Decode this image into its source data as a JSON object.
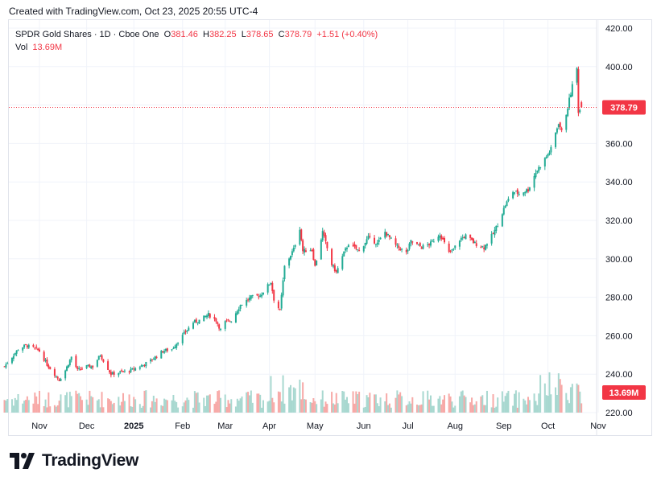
{
  "header": {
    "created_text": "Created with TradingView.com, Oct 23, 2025 20:55 UTC-4"
  },
  "legend": {
    "symbol": "SPDR Gold Shares · 1D · Cboe One",
    "o_label": "O",
    "o_value": "381.46",
    "h_label": "H",
    "h_value": "382.25",
    "l_label": "L",
    "l_value": "378.65",
    "c_label": "C",
    "c_value": "378.79",
    "change": "+1.51 (+0.40%)",
    "vol_label": "Vol",
    "vol_value": "13.69M"
  },
  "footer": {
    "brand": "TradingView"
  },
  "colors": {
    "up": "#22ab94",
    "down": "#f23645",
    "up_vol": "#a8d8d0",
    "down_vol": "#f7a9a7"
  },
  "chart_data": {
    "type": "candlestick",
    "title": "SPDR Gold Shares · 1D · Cboe One",
    "ylim": [
      220,
      420
    ],
    "y_ticks": [
      "420.00",
      "400.00",
      "380.00",
      "360.00",
      "340.00",
      "320.00",
      "300.00",
      "280.00",
      "260.00",
      "240.00",
      "220.00"
    ],
    "x_ticks": [
      {
        "label": "Nov",
        "x": "2024-11-01"
      },
      {
        "label": "Dec",
        "x": "2024-12-02"
      },
      {
        "label": "2025",
        "x": "2025-01-02"
      },
      {
        "label": "Feb",
        "x": "2025-02-03"
      },
      {
        "label": "Mar",
        "x": "2025-03-03"
      },
      {
        "label": "Apr",
        "x": "2025-04-01"
      },
      {
        "label": "May",
        "x": "2025-05-01"
      },
      {
        "label": "Jun",
        "x": "2025-06-02"
      },
      {
        "label": "Jul",
        "x": "2025-07-01"
      },
      {
        "label": "Aug",
        "x": "2025-08-01"
      },
      {
        "label": "Sep",
        "x": "2025-09-02"
      },
      {
        "label": "Oct",
        "x": "2025-10-01"
      },
      {
        "label": "Nov",
        "x": "2025-11-03"
      }
    ],
    "last_price_label": "378.79",
    "last_price": 378.79,
    "volume_label": "13.69M",
    "close_path": [
      {
        "date": "2024-10-09",
        "close": 244
      },
      {
        "date": "2024-10-14",
        "close": 249
      },
      {
        "date": "2024-10-18",
        "close": 253
      },
      {
        "date": "2024-10-23",
        "close": 255
      },
      {
        "date": "2024-10-30",
        "close": 253
      },
      {
        "date": "2024-11-01",
        "close": 252
      },
      {
        "date": "2024-11-06",
        "close": 245
      },
      {
        "date": "2024-11-11",
        "close": 240
      },
      {
        "date": "2024-11-14",
        "close": 237
      },
      {
        "date": "2024-11-18",
        "close": 242
      },
      {
        "date": "2024-11-22",
        "close": 249
      },
      {
        "date": "2024-11-26",
        "close": 242
      },
      {
        "date": "2024-12-02",
        "close": 244
      },
      {
        "date": "2024-12-06",
        "close": 244
      },
      {
        "date": "2024-12-11",
        "close": 250
      },
      {
        "date": "2024-12-18",
        "close": 240
      },
      {
        "date": "2024-12-24",
        "close": 241
      },
      {
        "date": "2024-12-31",
        "close": 242
      },
      {
        "date": "2025-01-06",
        "close": 244
      },
      {
        "date": "2025-01-13",
        "close": 247
      },
      {
        "date": "2025-01-21",
        "close": 252
      },
      {
        "date": "2025-01-27",
        "close": 253
      },
      {
        "date": "2025-02-03",
        "close": 260
      },
      {
        "date": "2025-02-10",
        "close": 267
      },
      {
        "date": "2025-02-14",
        "close": 268
      },
      {
        "date": "2025-02-20",
        "close": 271
      },
      {
        "date": "2025-02-25",
        "close": 268
      },
      {
        "date": "2025-02-28",
        "close": 263
      },
      {
        "date": "2025-03-03",
        "close": 267
      },
      {
        "date": "2025-03-07",
        "close": 268
      },
      {
        "date": "2025-03-13",
        "close": 276
      },
      {
        "date": "2025-03-20",
        "close": 280
      },
      {
        "date": "2025-03-26",
        "close": 281
      },
      {
        "date": "2025-04-02",
        "close": 288
      },
      {
        "date": "2025-04-04",
        "close": 279
      },
      {
        "date": "2025-04-08",
        "close": 273
      },
      {
        "date": "2025-04-11",
        "close": 296
      },
      {
        "date": "2025-04-17",
        "close": 305
      },
      {
        "date": "2025-04-21",
        "close": 316
      },
      {
        "date": "2025-04-23",
        "close": 304
      },
      {
        "date": "2025-04-29",
        "close": 305
      },
      {
        "date": "2025-05-01",
        "close": 296
      },
      {
        "date": "2025-05-06",
        "close": 314
      },
      {
        "date": "2025-05-12",
        "close": 297
      },
      {
        "date": "2025-05-15",
        "close": 293
      },
      {
        "date": "2025-05-20",
        "close": 303
      },
      {
        "date": "2025-05-23",
        "close": 308
      },
      {
        "date": "2025-05-30",
        "close": 304
      },
      {
        "date": "2025-06-05",
        "close": 311
      },
      {
        "date": "2025-06-11",
        "close": 308
      },
      {
        "date": "2025-06-16",
        "close": 314
      },
      {
        "date": "2025-06-23",
        "close": 307
      },
      {
        "date": "2025-06-30",
        "close": 303
      },
      {
        "date": "2025-07-03",
        "close": 309
      },
      {
        "date": "2025-07-10",
        "close": 306
      },
      {
        "date": "2025-07-16",
        "close": 308
      },
      {
        "date": "2025-07-22",
        "close": 313
      },
      {
        "date": "2025-07-28",
        "close": 303
      },
      {
        "date": "2025-07-31",
        "close": 305
      },
      {
        "date": "2025-08-04",
        "close": 310
      },
      {
        "date": "2025-08-08",
        "close": 312
      },
      {
        "date": "2025-08-14",
        "close": 308
      },
      {
        "date": "2025-08-20",
        "close": 306
      },
      {
        "date": "2025-08-26",
        "close": 313
      },
      {
        "date": "2025-08-29",
        "close": 318
      },
      {
        "date": "2025-09-03",
        "close": 328
      },
      {
        "date": "2025-09-08",
        "close": 335
      },
      {
        "date": "2025-09-12",
        "close": 334
      },
      {
        "date": "2025-09-18",
        "close": 336
      },
      {
        "date": "2025-09-23",
        "close": 345
      },
      {
        "date": "2025-09-29",
        "close": 352
      },
      {
        "date": "2025-10-03",
        "close": 357
      },
      {
        "date": "2025-10-08",
        "close": 371
      },
      {
        "date": "2025-10-10",
        "close": 366
      },
      {
        "date": "2025-10-14",
        "close": 379
      },
      {
        "date": "2025-10-17",
        "close": 390
      },
      {
        "date": "2025-10-20",
        "close": 399
      },
      {
        "date": "2025-10-21",
        "close": 377
      },
      {
        "date": "2025-10-22",
        "close": 377.28
      },
      {
        "date": "2025-10-23",
        "close": 378.79
      }
    ]
  }
}
